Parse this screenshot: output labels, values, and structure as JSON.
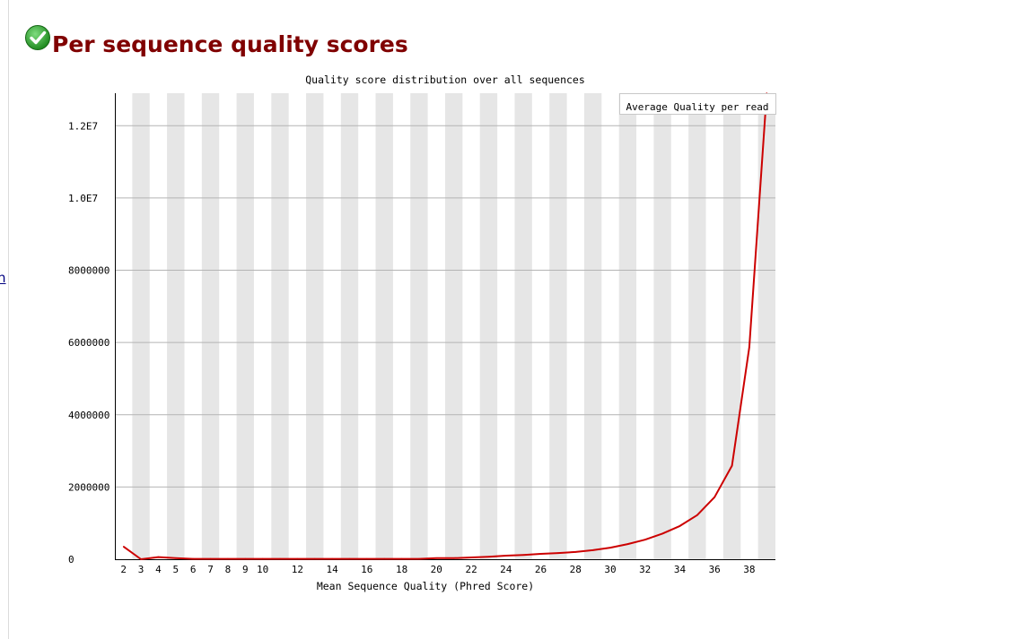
{
  "sidebar": {
    "link_text": "n"
  },
  "module": {
    "title": "Per sequence quality scores",
    "status": "pass",
    "status_icon": "check-circle-icon",
    "status_color": "#2e9c2e",
    "title_color": "#800000"
  },
  "chart_data": {
    "type": "line",
    "title": "Quality score distribution over all sequences",
    "xlabel": "Mean Sequence Quality (Phred Score)",
    "ylabel": "",
    "x": [
      2,
      3,
      4,
      5,
      6,
      7,
      8,
      9,
      10,
      11,
      12,
      13,
      14,
      15,
      16,
      17,
      18,
      19,
      20,
      21,
      22,
      23,
      24,
      25,
      26,
      27,
      28,
      29,
      30,
      31,
      32,
      33,
      34,
      35,
      36,
      37,
      38,
      39
    ],
    "x_tick_labels": [
      "2",
      "3",
      "4",
      "5",
      "6",
      "7",
      "8",
      "9",
      "10",
      "12",
      "14",
      "16",
      "18",
      "20",
      "22",
      "24",
      "26",
      "28",
      "30",
      "32",
      "34",
      "36",
      "38"
    ],
    "y_tick_labels": [
      "0",
      "2000000",
      "4000000",
      "6000000",
      "8000000",
      "1.0E7",
      "1.2E7"
    ],
    "y_ticks": [
      0,
      2000000,
      4000000,
      6000000,
      8000000,
      10000000,
      12000000
    ],
    "ylim": [
      0,
      12900000
    ],
    "series": [
      {
        "name": "Average Quality per read",
        "color": "#cc0000",
        "values": [
          350000,
          0,
          60000,
          30000,
          10000,
          10000,
          10000,
          10000,
          10000,
          10000,
          10000,
          10000,
          10000,
          10000,
          10000,
          10000,
          10000,
          10000,
          30000,
          30000,
          50000,
          70000,
          100000,
          120000,
          150000,
          170000,
          200000,
          250000,
          320000,
          420000,
          540000,
          710000,
          920000,
          1220000,
          1720000,
          2590000,
          5870000,
          12900000
        ]
      }
    ],
    "grid": true,
    "legend_position": "top-right",
    "band_color": "#e6e6e6",
    "grid_color": "#b4b4b4"
  }
}
